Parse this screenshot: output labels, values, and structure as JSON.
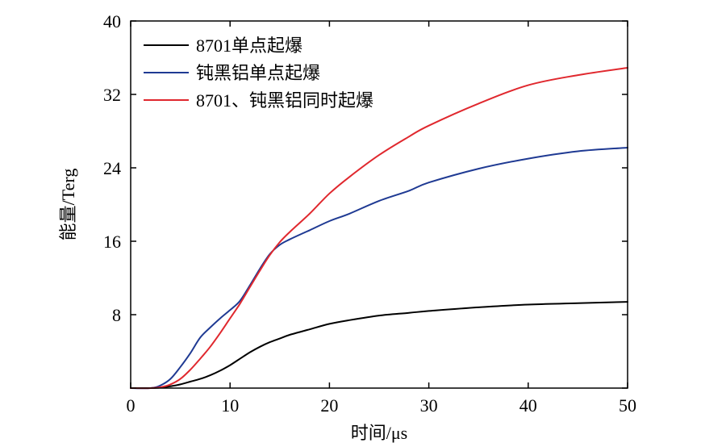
{
  "chart_data": {
    "type": "line",
    "title": "",
    "xlabel": "时间/μs",
    "ylabel": "能量/Terg",
    "xlim": [
      0,
      50
    ],
    "ylim": [
      0,
      40
    ],
    "xticks": [
      0,
      10,
      20,
      30,
      40,
      50
    ],
    "yticks": [
      0,
      8,
      16,
      24,
      32,
      40
    ],
    "xtick_labels": [
      "0",
      "10",
      "20",
      "30",
      "40",
      "50"
    ],
    "ytick_labels": [
      "",
      "8",
      "16",
      "24",
      "32",
      "40"
    ],
    "grid": false,
    "legend_position": "top-left",
    "series": [
      {
        "name": "8701单点起爆",
        "color": "#000000",
        "x": [
          0,
          2,
          3,
          4,
          5,
          6,
          7,
          8,
          9,
          10,
          11,
          12,
          13,
          14,
          15,
          16,
          18,
          20,
          22,
          25,
          28,
          30,
          35,
          40,
          45,
          50
        ],
        "y": [
          0,
          0,
          0.05,
          0.2,
          0.4,
          0.7,
          1.0,
          1.4,
          1.9,
          2.5,
          3.2,
          3.9,
          4.5,
          5.0,
          5.4,
          5.8,
          6.4,
          7.0,
          7.4,
          7.9,
          8.2,
          8.4,
          8.8,
          9.1,
          9.25,
          9.4
        ]
      },
      {
        "name": "钝黑铝单点起爆",
        "color": "#1f3a93",
        "x": [
          0,
          2,
          3,
          4,
          5,
          6,
          7,
          8,
          9,
          10,
          11,
          12,
          13,
          14,
          15,
          16,
          18,
          20,
          22,
          25,
          28,
          30,
          35,
          40,
          45,
          50
        ],
        "y": [
          0,
          0,
          0.3,
          1.0,
          2.3,
          3.8,
          5.5,
          6.6,
          7.6,
          8.5,
          9.5,
          11.2,
          13.0,
          14.6,
          15.6,
          16.2,
          17.2,
          18.2,
          19.0,
          20.4,
          21.5,
          22.4,
          23.9,
          25.0,
          25.8,
          26.2
        ]
      },
      {
        "name": "8701、钝黑铝同时起爆",
        "color": "#e0282e",
        "x": [
          0,
          2,
          3,
          4,
          5,
          6,
          7,
          8,
          9,
          10,
          11,
          12,
          13,
          14,
          15,
          16,
          18,
          20,
          22,
          25,
          28,
          30,
          35,
          40,
          45,
          50
        ],
        "y": [
          0,
          0,
          0.1,
          0.4,
          1.0,
          2.0,
          3.2,
          4.5,
          6.0,
          7.6,
          9.2,
          11.0,
          12.8,
          14.5,
          15.9,
          17.0,
          19.0,
          21.2,
          23.0,
          25.4,
          27.4,
          28.6,
          31.0,
          33.0,
          34.1,
          34.9
        ]
      }
    ]
  }
}
